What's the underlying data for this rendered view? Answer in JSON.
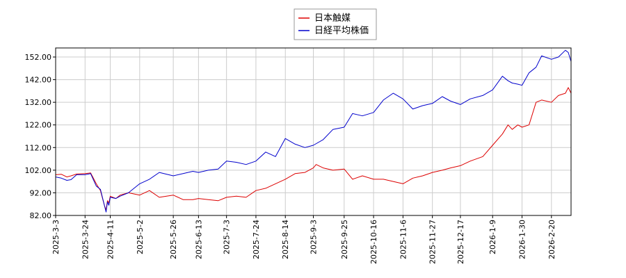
{
  "chart_data": {
    "type": "line",
    "title": "",
    "xlabel": "",
    "ylabel": "",
    "ylim": [
      82,
      156
    ],
    "xlim": [
      "2025-03-03",
      "2026-03-06"
    ],
    "y_ticks": [
      "82.00",
      "92.00",
      "102.00",
      "112.00",
      "122.00",
      "132.00",
      "142.00",
      "152.00"
    ],
    "x_ticks": [
      "2025-3-3",
      "2025-3-24",
      "2025-4-11",
      "2025-5-2",
      "2025-5-26",
      "2025-6-13",
      "2025-7-3",
      "2025-7-24",
      "2025-8-14",
      "2025-9-3",
      "2025-9-25",
      "2025-10-16",
      "2025-11-6",
      "2025-11-27",
      "2025-12-17",
      "2026-1-9",
      "2026-1-30",
      "2026-2-20"
    ],
    "grid": true,
    "legend_position": "top-center",
    "series": [
      {
        "name": "日本触媒",
        "color": "#dd0000",
        "x": [
          "2025-03-03",
          "2025-03-07",
          "2025-03-11",
          "2025-03-14",
          "2025-03-18",
          "2025-03-24",
          "2025-03-28",
          "2025-04-01",
          "2025-04-04",
          "2025-04-07",
          "2025-04-08",
          "2025-04-09",
          "2025-04-10",
          "2025-04-11",
          "2025-04-15",
          "2025-04-18",
          "2025-04-24",
          "2025-05-02",
          "2025-05-09",
          "2025-05-16",
          "2025-05-26",
          "2025-06-02",
          "2025-06-09",
          "2025-06-13",
          "2025-06-20",
          "2025-06-27",
          "2025-07-03",
          "2025-07-10",
          "2025-07-17",
          "2025-07-24",
          "2025-07-31",
          "2025-08-07",
          "2025-08-14",
          "2025-08-21",
          "2025-08-28",
          "2025-09-03",
          "2025-09-05",
          "2025-09-10",
          "2025-09-17",
          "2025-09-25",
          "2025-10-01",
          "2025-10-08",
          "2025-10-16",
          "2025-10-23",
          "2025-10-30",
          "2025-11-06",
          "2025-11-13",
          "2025-11-20",
          "2025-11-27",
          "2025-12-04",
          "2025-12-10",
          "2025-12-17",
          "2025-12-24",
          "2026-01-02",
          "2026-01-09",
          "2026-01-16",
          "2026-01-20",
          "2026-01-23",
          "2026-01-27",
          "2026-01-30",
          "2026-02-04",
          "2026-02-09",
          "2026-02-13",
          "2026-02-20",
          "2026-02-25",
          "2026-03-02",
          "2026-03-04",
          "2026-03-06"
        ],
        "values": [
          100.0,
          100.2,
          99.0,
          99.5,
          100.3,
          100.5,
          100.8,
          96.0,
          93.0,
          86.0,
          84.5,
          88.5,
          87.5,
          90.5,
          89.5,
          91.0,
          92.0,
          91.0,
          93.0,
          90.0,
          91.0,
          89.0,
          89.0,
          89.5,
          89.0,
          88.5,
          90.0,
          90.5,
          90.0,
          93.0,
          94.0,
          96.0,
          98.0,
          100.5,
          101.0,
          103.0,
          104.5,
          103.0,
          102.0,
          102.5,
          98.0,
          99.5,
          98.0,
          98.0,
          97.0,
          96.0,
          98.5,
          99.5,
          101.0,
          102.0,
          103.0,
          104.0,
          106.0,
          108.0,
          113.0,
          118.0,
          122.0,
          120.0,
          122.0,
          121.0,
          122.0,
          132.0,
          133.0,
          132.0,
          135.0,
          136.0,
          138.5,
          136.0
        ]
      },
      {
        "name": "日経平均株価",
        "color": "#0000cc",
        "x": [
          "2025-03-03",
          "2025-03-07",
          "2025-03-11",
          "2025-03-14",
          "2025-03-18",
          "2025-03-24",
          "2025-03-28",
          "2025-04-01",
          "2025-04-04",
          "2025-04-07",
          "2025-04-08",
          "2025-04-09",
          "2025-04-10",
          "2025-04-11",
          "2025-04-15",
          "2025-04-18",
          "2025-04-24",
          "2025-05-02",
          "2025-05-09",
          "2025-05-16",
          "2025-05-26",
          "2025-06-02",
          "2025-06-09",
          "2025-06-13",
          "2025-06-20",
          "2025-06-27",
          "2025-07-03",
          "2025-07-10",
          "2025-07-17",
          "2025-07-24",
          "2025-07-31",
          "2025-08-07",
          "2025-08-14",
          "2025-08-21",
          "2025-08-28",
          "2025-09-03",
          "2025-09-10",
          "2025-09-17",
          "2025-09-25",
          "2025-10-01",
          "2025-10-08",
          "2025-10-16",
          "2025-10-23",
          "2025-10-30",
          "2025-11-06",
          "2025-11-13",
          "2025-11-20",
          "2025-11-27",
          "2025-12-04",
          "2025-12-10",
          "2025-12-17",
          "2025-12-24",
          "2026-01-02",
          "2026-01-09",
          "2026-01-16",
          "2026-01-20",
          "2026-01-23",
          "2026-01-27",
          "2026-01-30",
          "2026-02-04",
          "2026-02-09",
          "2026-02-13",
          "2026-02-20",
          "2026-02-25",
          "2026-03-02",
          "2026-03-04",
          "2026-03-06"
        ],
        "values": [
          99.0,
          98.5,
          97.5,
          97.8,
          100.0,
          100.0,
          100.5,
          95.0,
          93.5,
          86.0,
          83.5,
          88.0,
          86.5,
          90.0,
          89.5,
          90.5,
          92.0,
          96.0,
          98.0,
          101.0,
          99.5,
          100.5,
          101.5,
          101.0,
          102.0,
          102.5,
          106.0,
          105.5,
          104.5,
          106.0,
          110.0,
          108.0,
          116.0,
          113.5,
          112.0,
          113.0,
          115.5,
          120.0,
          121.0,
          127.0,
          126.0,
          127.5,
          133.0,
          136.0,
          133.5,
          129.0,
          130.5,
          131.5,
          134.5,
          132.5,
          131.0,
          133.5,
          135.0,
          137.5,
          143.5,
          141.5,
          140.5,
          140.0,
          139.5,
          145.0,
          147.5,
          152.5,
          151.0,
          152.0,
          155.0,
          154.0,
          150.0
        ]
      }
    ]
  }
}
